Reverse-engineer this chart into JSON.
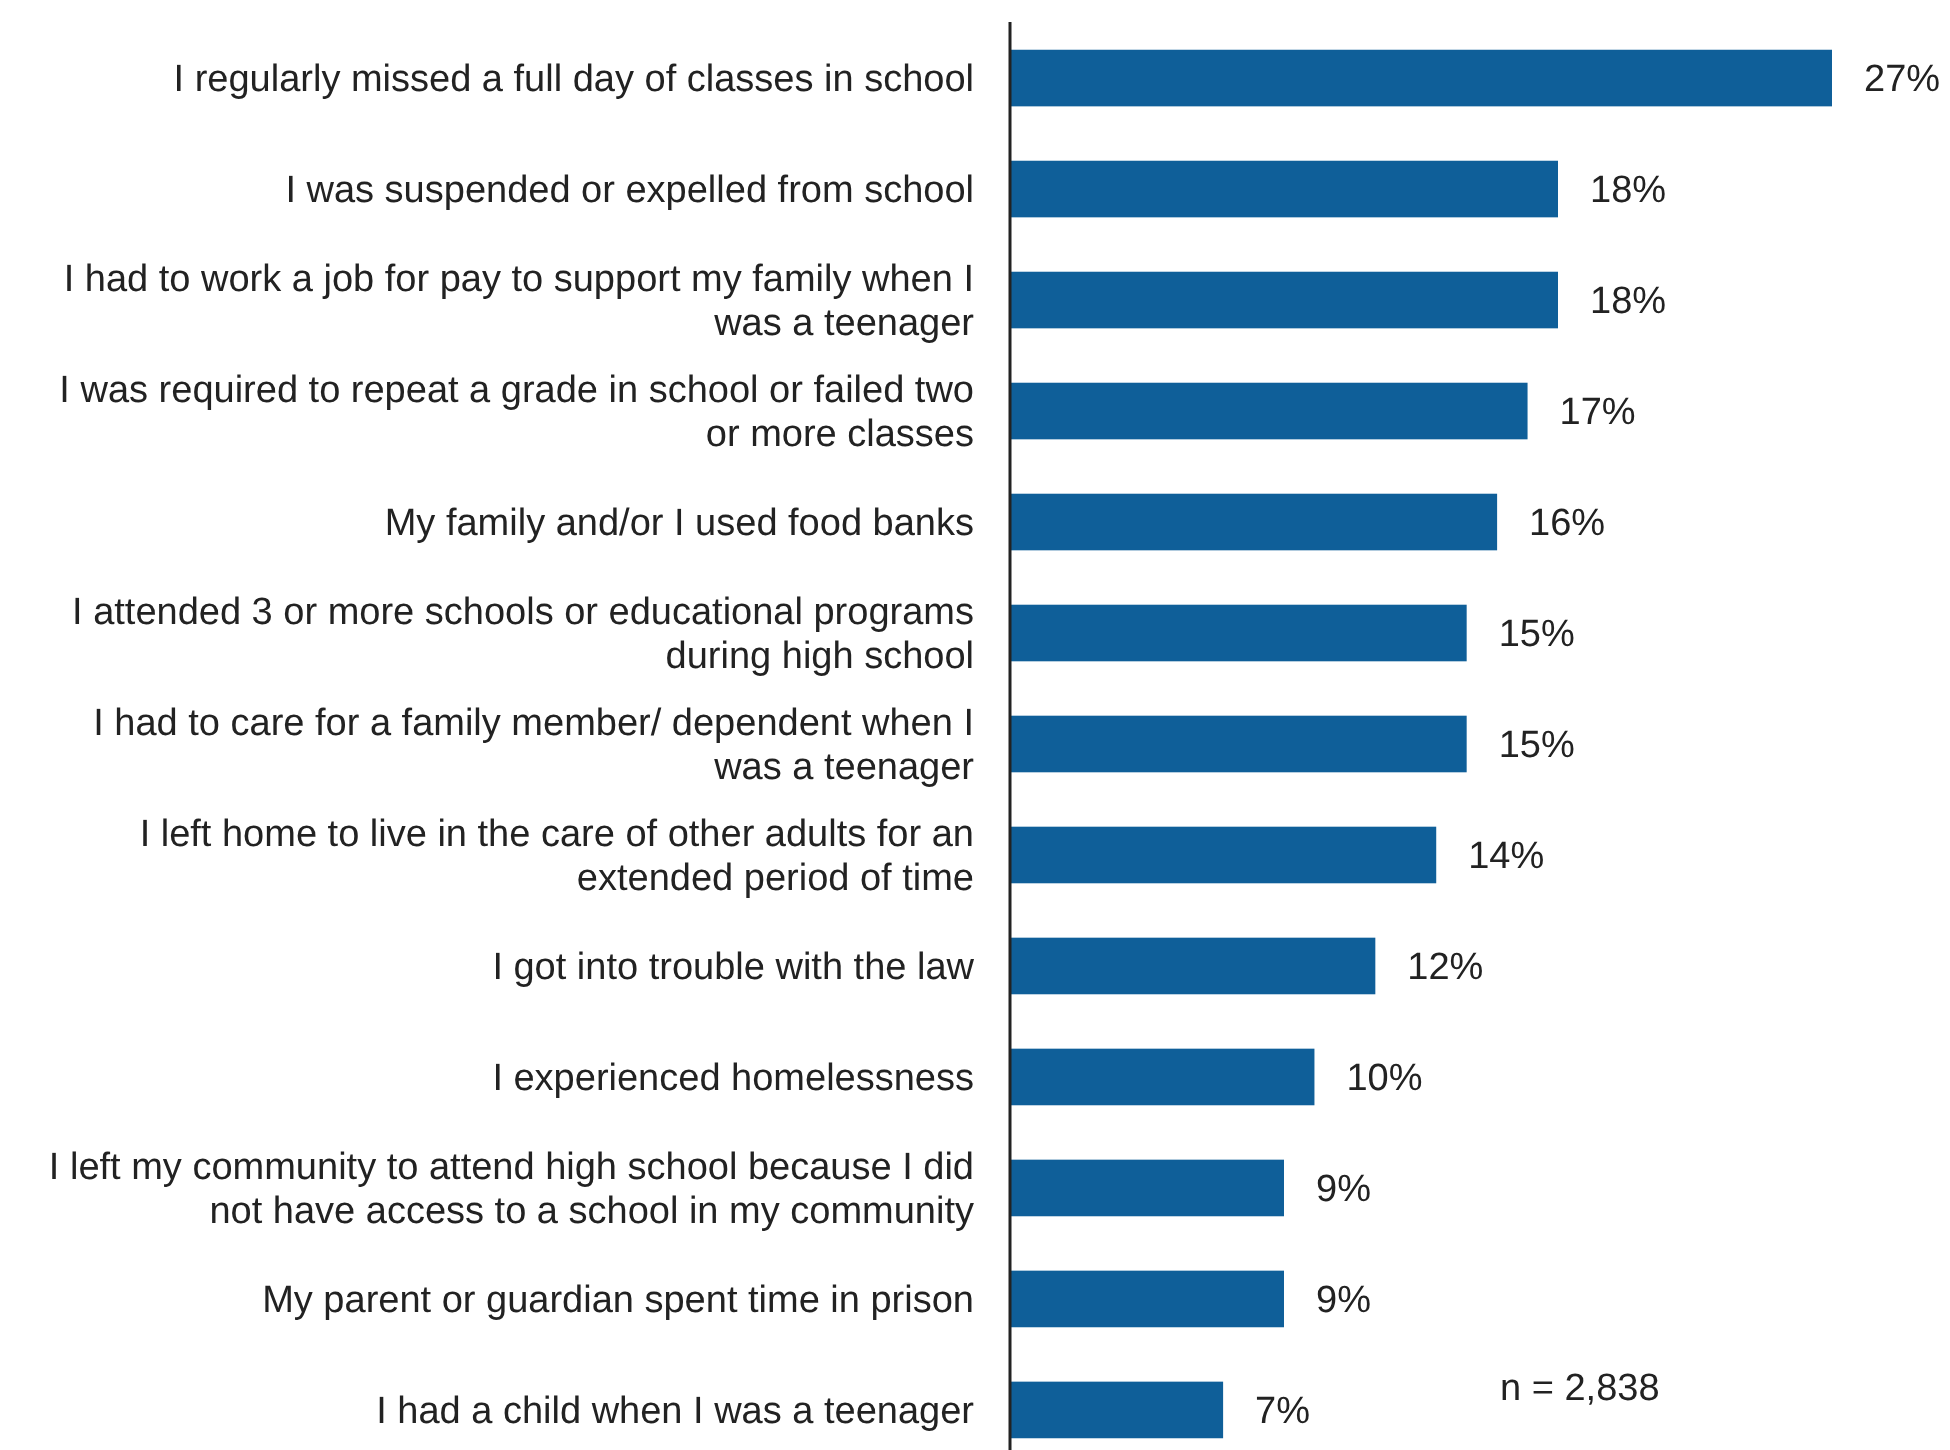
{
  "chart_data": {
    "type": "bar",
    "orientation": "horizontal",
    "categories": [
      "I regularly missed a full day of classes in school",
      "I was suspended or expelled from school",
      "I had to work a job for pay to support my family when I was a teenager",
      "I was required to repeat a grade in school or failed two or more classes",
      "My family and/or I used food banks",
      "I attended 3 or more schools or educational programs during high school",
      "I had to care for a family member/ dependent when I was a teenager",
      "I left home to live in the care of other adults for an extended period of time",
      "I got into trouble with the law",
      "I experienced homelessness",
      "I left my community to attend high school because I did not have access to a school in my community",
      "My parent or guardian spent time in prison",
      "I had a child when I was a teenager"
    ],
    "values": [
      27,
      18,
      18,
      17,
      16,
      15,
      15,
      14,
      12,
      10,
      9,
      9,
      7
    ],
    "value_labels": [
      "27%",
      "18%",
      "18%",
      "17%",
      "16%",
      "15%",
      "15%",
      "14%",
      "12%",
      "10%",
      "9%",
      "9%",
      "7%"
    ],
    "color": "#0f5f99",
    "annotations": [
      "n = 2,838"
    ]
  }
}
